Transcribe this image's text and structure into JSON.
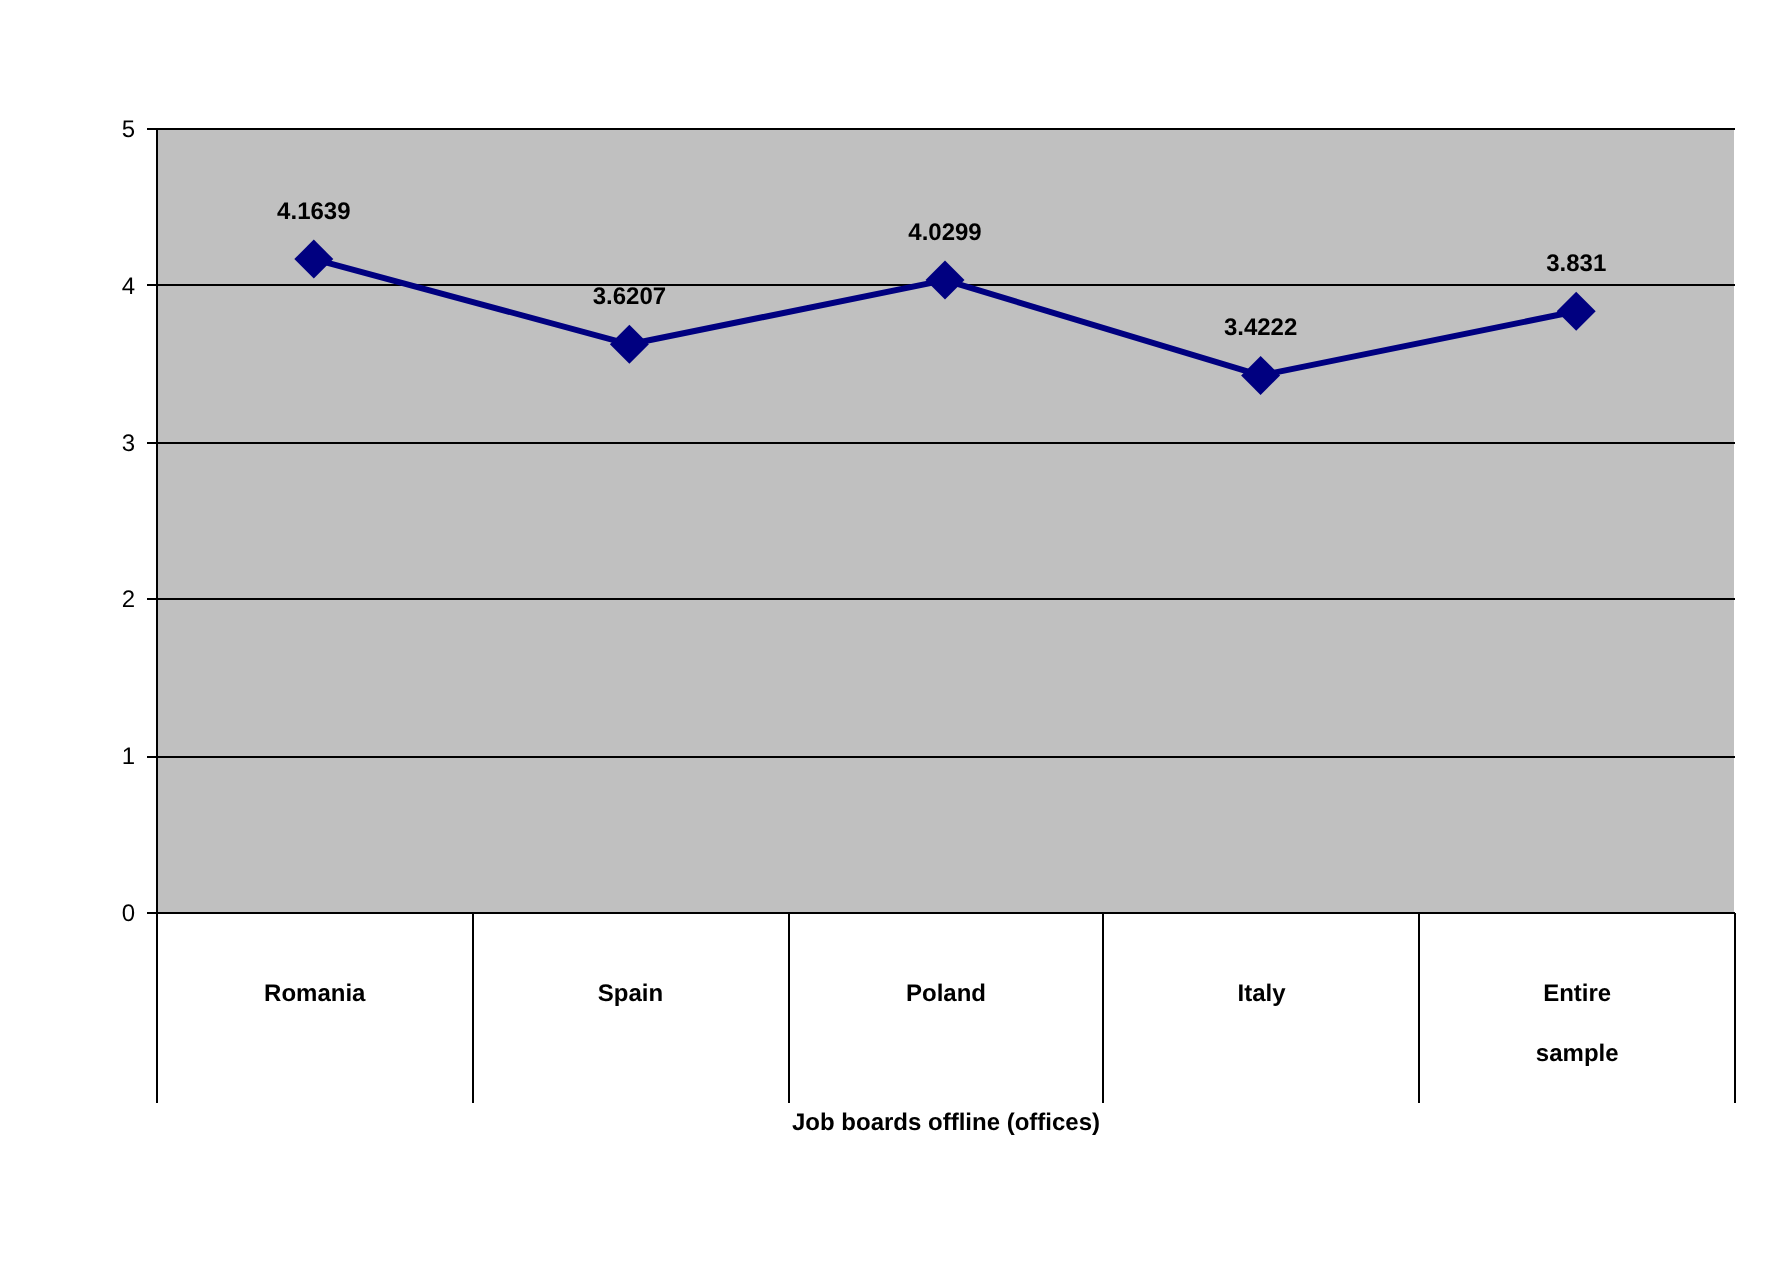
{
  "chart_data": {
    "type": "line",
    "xlabel": "Job boards offline (offices)",
    "categories": [
      "Romania",
      "Spain",
      "Poland",
      "Italy",
      "Entire sample"
    ],
    "series": [
      {
        "color": "#000080",
        "values": [
          4.1639,
          3.6207,
          4.0299,
          3.4222,
          3.831
        ]
      }
    ],
    "ylim": [
      0,
      5
    ],
    "yticks": [
      0,
      1,
      2,
      3,
      4,
      5
    ],
    "grid": "y",
    "marker": "diamond",
    "data_labels": true,
    "legend": false
  }
}
